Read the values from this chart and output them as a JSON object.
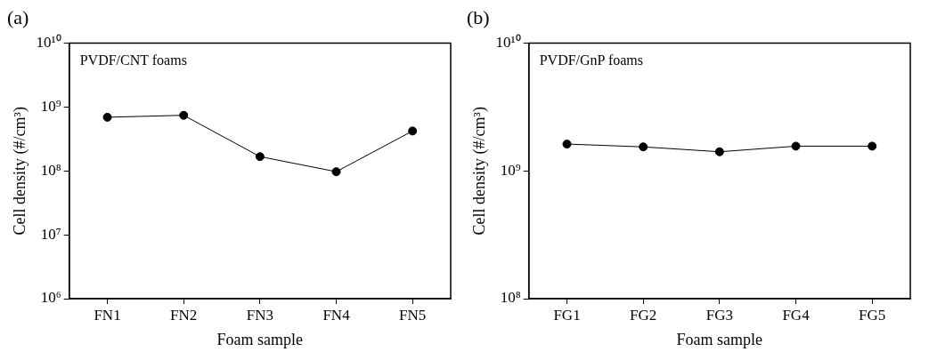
{
  "chart_data": [
    {
      "type": "line",
      "title": "(a)",
      "xlabel": "Foam sample",
      "ylabel": "Cell density (#/cm³)",
      "categories": [
        "FN1",
        "FN2",
        "FN3",
        "FN4",
        "FN5"
      ],
      "series": [
        {
          "color": "#000000",
          "values": [
            690000000,
            740000000,
            167000000,
            97000000,
            420000000
          ]
        }
      ],
      "log": "y",
      "ylim": [
        1000000,
        10000000000
      ],
      "yticks": [
        {
          "value": 1000000,
          "label": "10⁶"
        },
        {
          "value": 10000000,
          "label": "10⁷"
        },
        {
          "value": 100000000,
          "label": "10⁸"
        },
        {
          "value": 1000000000,
          "label": "10⁹"
        },
        {
          "value": 10000000000,
          "label": "10¹⁰"
        }
      ],
      "marker": "circle",
      "annotations": [
        "PVDF/CNT foams"
      ]
    },
    {
      "type": "line",
      "title": "(b)",
      "xlabel": "Foam sample",
      "ylabel": "Cell density (#/cm³)",
      "categories": [
        "FG1",
        "FG2",
        "FG3",
        "FG4",
        "FG5"
      ],
      "series": [
        {
          "color": "#000000",
          "values": [
            1620000000,
            1540000000,
            1410000000,
            1560000000,
            1560000000
          ]
        }
      ],
      "log": "y",
      "ylim": [
        100000000,
        10000000000
      ],
      "yticks": [
        {
          "value": 100000000,
          "label": "10⁸"
        },
        {
          "value": 1000000000,
          "label": "10⁹"
        },
        {
          "value": 10000000000,
          "label": "10¹⁰"
        }
      ],
      "marker": "circle",
      "annotations": [
        "PVDF/GnP foams"
      ]
    }
  ]
}
